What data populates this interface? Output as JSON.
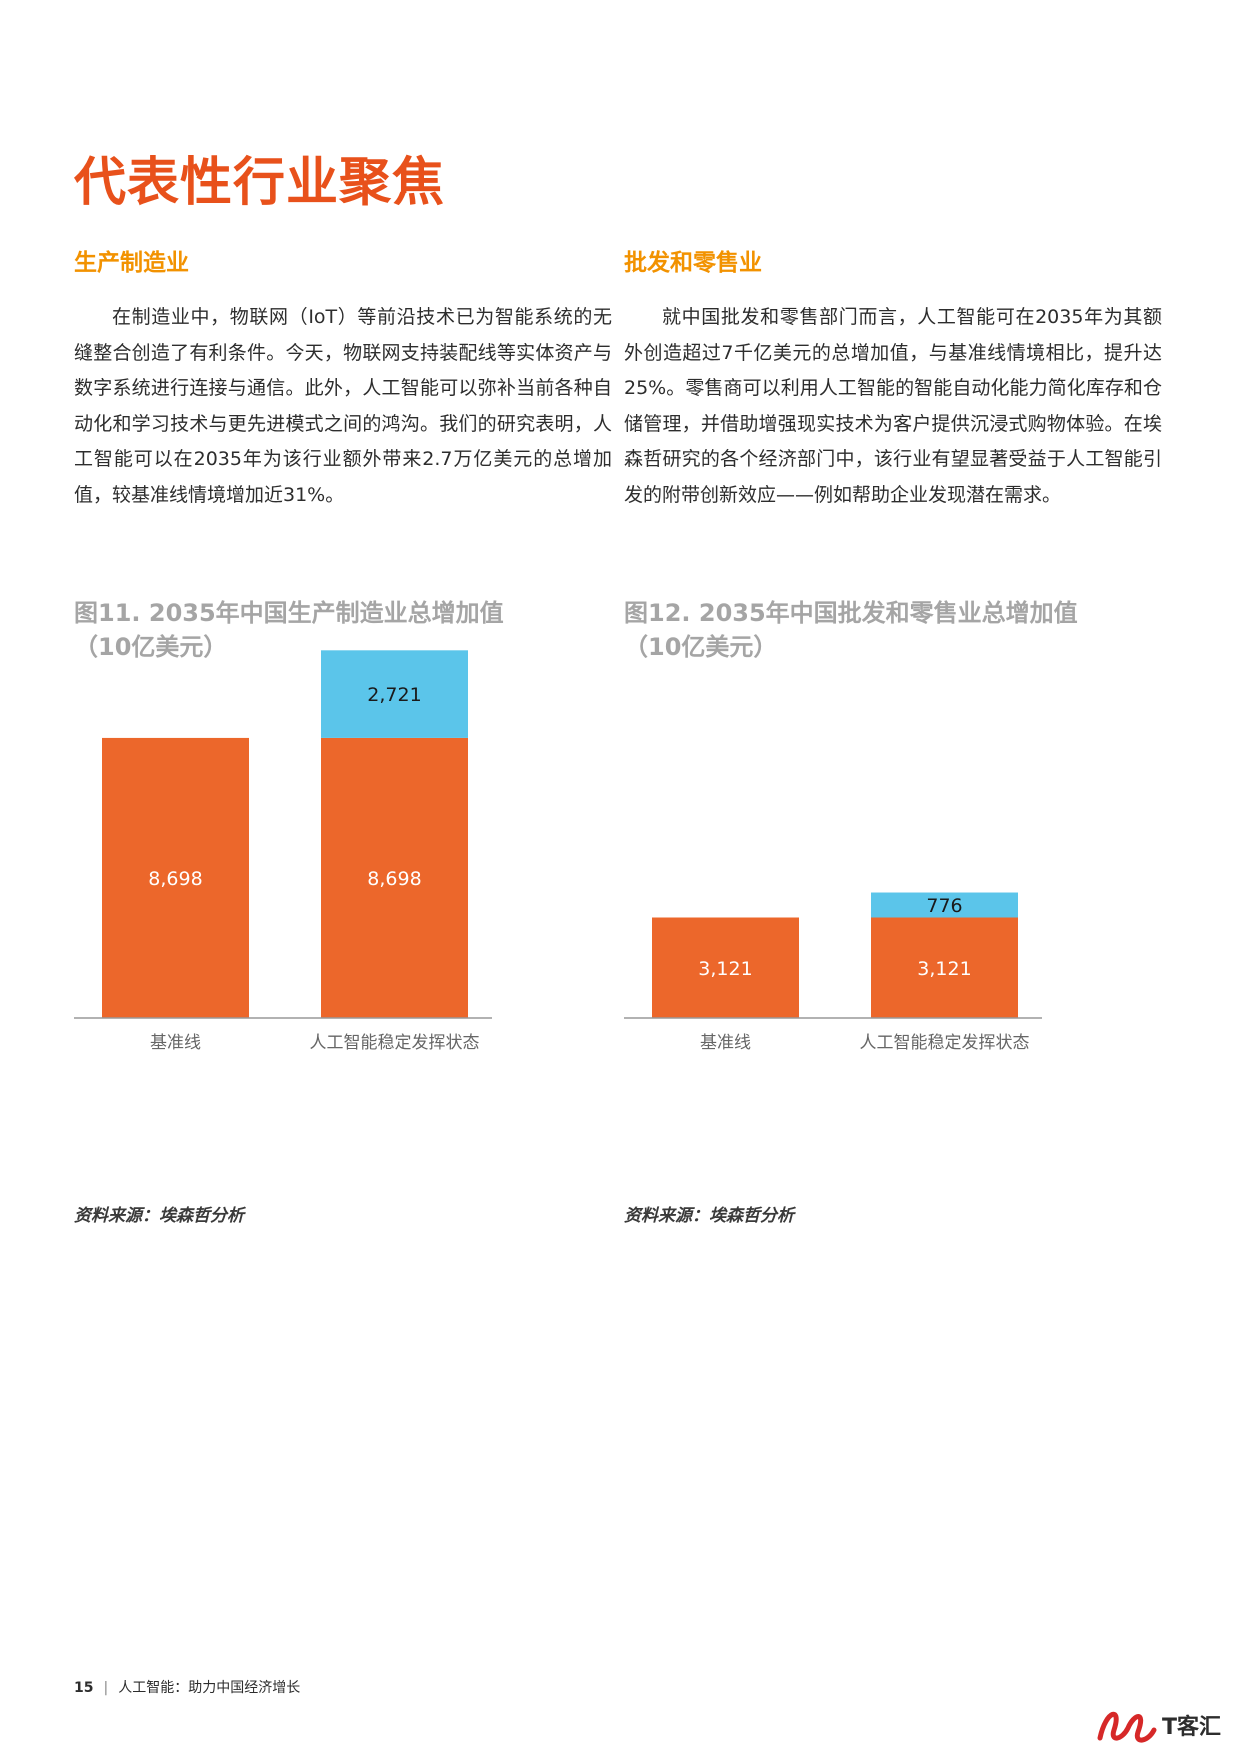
{
  "page": {
    "title": "代表性行业聚焦",
    "footer": {
      "page_number": "15",
      "separator": "|",
      "text": "人工智能：助力中国经济增长"
    },
    "watermark": {
      "text": "T客汇",
      "colors": {
        "mark": "#d62828"
      }
    }
  },
  "sections": [
    {
      "title": "生产制造业",
      "body": "在制造业中，物联网（IoT）等前沿技术已为智能系统的无缝整合创造了有利条件。今天，物联网支持装配线等实体资产与数字系统进行连接与通信。此外，人工智能可以弥补当前各种自动化和学习技术与更先进模式之间的鸿沟。我们的研究表明，人工智能可以在2035年为该行业额外带来2.7万亿美元的总增加值，较基准线情境增加近31%。"
    },
    {
      "title": "批发和零售业",
      "body": "就中国批发和零售部门而言，人工智能可在2035年为其额外创造超过7千亿美元的总增加值，与基准线情境相比，提升达25%。零售商可以利用人工智能的智能自动化能力简化库存和仓储管理，并借助增强现实技术为客户提供沉浸式购物体验。在埃森哲研究的各个经济部门中，该行业有望显著受益于人工智能引发的附带创新效应——例如帮助企业发现潜在需求。"
    }
  ],
  "figures": [
    {
      "title_line1": "图11. 2035年中国生产制造业总增加值",
      "title_line2": "（10亿美元）",
      "source": "资料来源：埃森哲分析"
    },
    {
      "title_line1": "图12. 2035年中国批发和零售业总增加值",
      "title_line2": "（10亿美元）",
      "source": "资料来源：埃森哲分析"
    }
  ],
  "colors": {
    "title": "#e8511b",
    "section": "#f29200",
    "base": "#ec672b",
    "ai": "#5bc5ea",
    "figure_title": "#a5a5a5"
  },
  "chart_data": [
    {
      "type": "bar",
      "stacked": true,
      "categories": [
        "基准线",
        "人工智能稳定发挥状态"
      ],
      "series": [
        {
          "values": [
            8698,
            8698
          ],
          "labels": [
            "8,698",
            "8,698"
          ]
        },
        {
          "values": [
            0,
            2721
          ],
          "labels": [
            "",
            "2,721"
          ]
        }
      ]
    },
    {
      "type": "bar",
      "stacked": true,
      "categories": [
        "基准线",
        "人工智能稳定发挥状态"
      ],
      "series": [
        {
          "values": [
            3121,
            3121
          ],
          "labels": [
            "3,121",
            "3,121"
          ]
        },
        {
          "values": [
            0,
            776
          ],
          "labels": [
            "",
            "776"
          ]
        }
      ]
    }
  ]
}
